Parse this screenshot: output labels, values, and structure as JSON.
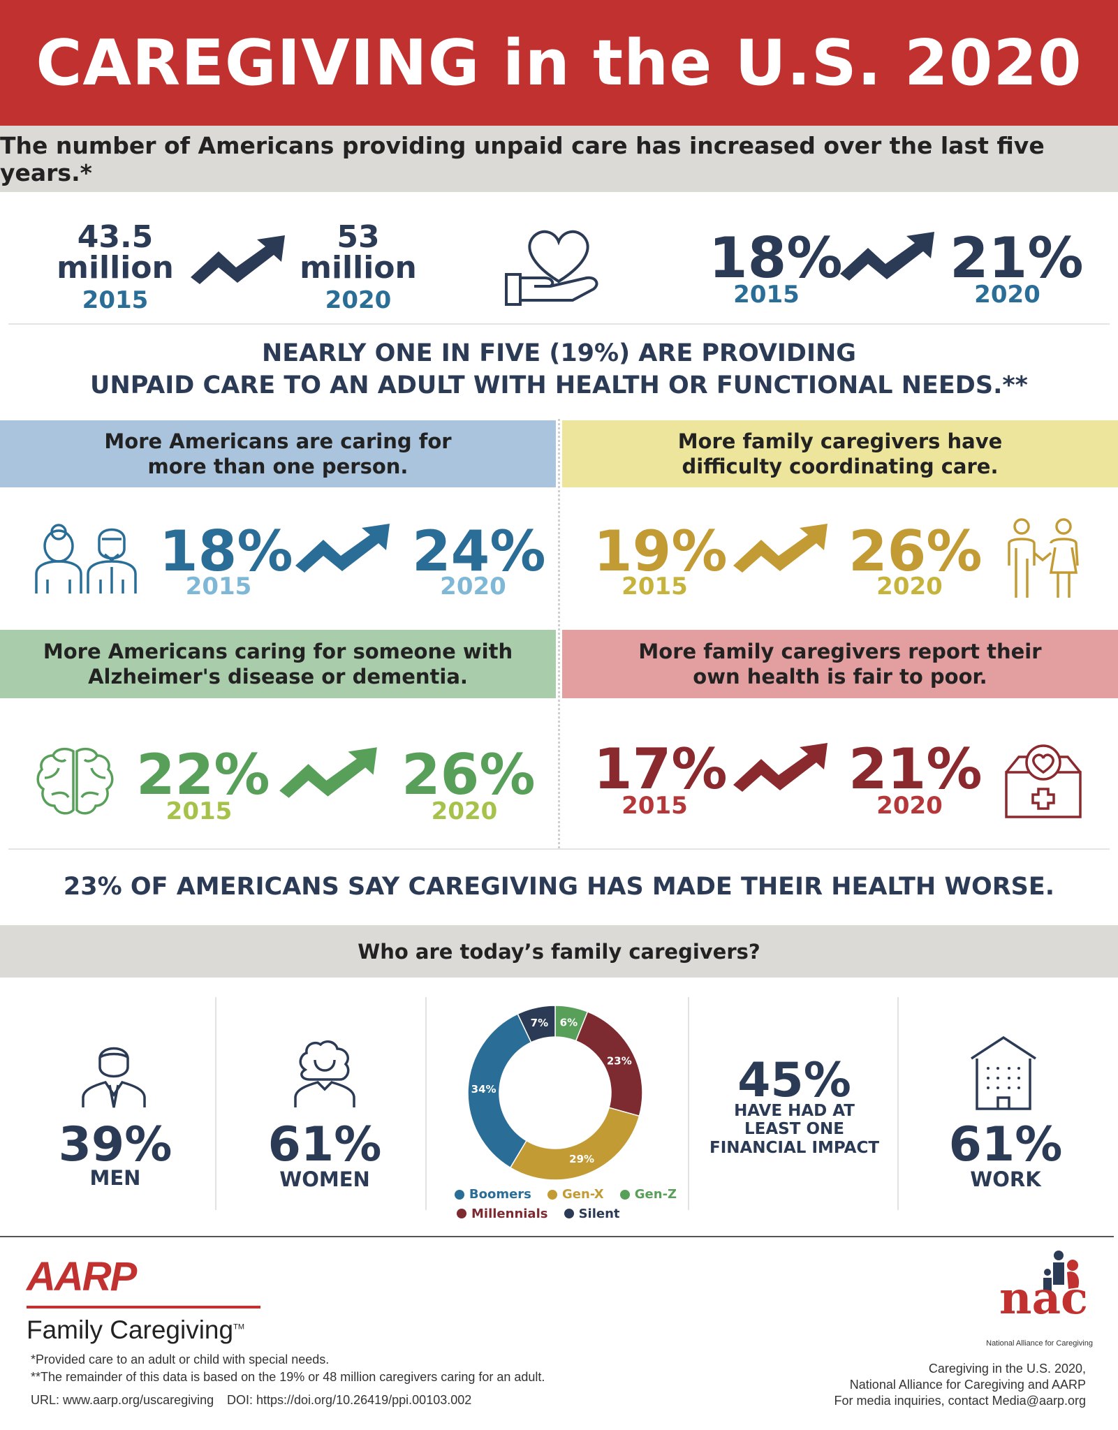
{
  "colors": {
    "red": "#c0312f",
    "navy": "#2b3a55",
    "blue": "#2a6d96",
    "light_blue": "#7fb7d6",
    "gold": "#c39b35",
    "light_gold": "#c6b33b",
    "green": "#58a05a",
    "light_green": "#a6c24a",
    "maroon": "#8a2a2e",
    "band_blue": "#a9c4dc",
    "band_yellow": "#ece59b",
    "band_green": "#a9cdaa",
    "band_red": "#e39e9f"
  },
  "header": {
    "title": "CAREGIVING in the U.S. 2020",
    "subtitle": "The number of Americans providing unpaid care has increased over the last five years.*"
  },
  "top_stats": {
    "count_2015": "43.5",
    "count_2015_unit": "million",
    "year_2015": "2015",
    "count_2020": "53",
    "count_2020_unit": "million",
    "year_2020": "2020",
    "pct_2015": "18%",
    "pct_2020": "21%",
    "heart_icon": "heart-in-hand-icon"
  },
  "statement_1": {
    "line1": "NEARLY ONE IN FIVE (19%) ARE PROVIDING",
    "line2": "UNPAID CARE TO AN ADULT WITH HEALTH OR FUNCTIONAL NEEDS.**"
  },
  "cards": [
    {
      "title_1": "More Americans are caring for",
      "title_2": "more than one person.",
      "from": "18%",
      "from_year": "2015",
      "to": "24%",
      "to_year": "2020",
      "icon": "elderly-couple-icon"
    },
    {
      "title_1": "More family caregivers have",
      "title_2": "difficulty coordinating care.",
      "from": "19%",
      "from_year": "2015",
      "to": "26%",
      "to_year": "2020",
      "icon": "holding-hands-icon"
    },
    {
      "title_1": "More Americans caring for someone with",
      "title_2": "Alzheimer's disease or dementia.",
      "from": "22%",
      "from_year": "2015",
      "to": "26%",
      "to_year": "2020",
      "icon": "brain-icon"
    },
    {
      "title_1": "More family caregivers report their",
      "title_2": "own health is fair to poor.",
      "from": "17%",
      "from_year": "2015",
      "to": "21%",
      "to_year": "2020",
      "icon": "medical-kit-icon"
    }
  ],
  "statement_2": "23% OF AMERICANS SAY CAREGIVING HAS MADE THEIR HEALTH WORSE.",
  "who": {
    "heading": "Who are today’s family caregivers?",
    "men_pct": "39%",
    "men_label": "MEN",
    "women_pct": "61%",
    "women_label": "WOMEN",
    "financial_pct": "45%",
    "financial_1": "HAVE HAD AT",
    "financial_2": "LEAST ONE",
    "financial_3": "FINANCIAL IMPACT",
    "work_pct": "61%",
    "work_label": "WORK"
  },
  "chart_data": {
    "type": "pie",
    "title": "",
    "categories": [
      "Gen-Z",
      "Millennials",
      "Gen-X",
      "Boomers",
      "Silent"
    ],
    "values": [
      6,
      23,
      29,
      34,
      7
    ],
    "labels": [
      "6%",
      "23%",
      "29%",
      "34%",
      "7%"
    ],
    "colors": [
      "#58a05a",
      "#7d2a30",
      "#c39b35",
      "#2a6d96",
      "#2b3a55"
    ],
    "legend_order": [
      "Boomers",
      "Gen-X",
      "Gen-Z",
      "Millennials",
      "Silent"
    ]
  },
  "footer": {
    "aarp_logo": "AARP",
    "aarp_sub": "Family Caregiving",
    "tm": "TM",
    "note_1": "*Provided care to an adult or child with special needs.",
    "note_2": "**The remainder of this data is based on the 19% or 48 million caregivers caring for an adult.",
    "url": "URL: www.aarp.org/uscaregiving",
    "doi": "DOI: https://doi.org/10.26419/ppi.00103.002",
    "nac_logo": "nac",
    "nac_sub": "National Alliance for Caregiving",
    "credit_1": "Caregiving in the U.S. 2020,",
    "credit_2": "National Alliance for Caregiving and AARP",
    "credit_3": "For media inquiries, contact Media@aarp.org"
  }
}
